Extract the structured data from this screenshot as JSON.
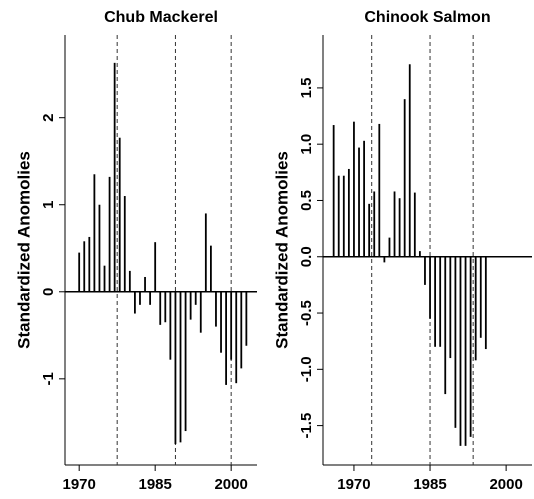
{
  "chart_data": [
    {
      "type": "bar",
      "title": "Chub Mackerel",
      "y_label": "Standardized Anomolies",
      "color": "#000000",
      "x": [
        1970,
        1971,
        1972,
        1973,
        1974,
        1975,
        1976,
        1977,
        1978,
        1979,
        1980,
        1981,
        1982,
        1983,
        1984,
        1985,
        1986,
        1987,
        1988,
        1989,
        1990,
        1991,
        1992,
        1993,
        1994,
        1995,
        1996,
        1997,
        1998,
        1999,
        2000,
        2001,
        2002,
        2003
      ],
      "values": [
        0.45,
        0.58,
        0.63,
        1.35,
        1.0,
        0.3,
        1.32,
        2.63,
        1.77,
        1.1,
        0.24,
        -0.25,
        -0.15,
        0.17,
        -0.15,
        0.57,
        -0.38,
        -0.35,
        -0.78,
        -1.75,
        -1.73,
        -1.6,
        -0.32,
        -0.15,
        -0.47,
        0.9,
        0.53,
        -0.4,
        -0.7,
        -1.07,
        -0.78,
        -1.05,
        -0.88,
        -0.62
      ],
      "vlines": [
        1977.5,
        1989,
        2000
      ],
      "xlim": [
        1967.2,
        2005.1
      ],
      "xticks": [
        1970,
        1985,
        2000
      ],
      "ylim": [
        -1.99,
        2.95
      ],
      "yticks": [
        -1,
        0,
        1,
        2
      ]
    },
    {
      "type": "bar",
      "title": "Chinook Salmon",
      "y_label": "Standardized Anomolies",
      "color": "#000000",
      "x": [
        1966,
        1967,
        1968,
        1969,
        1970,
        1971,
        1972,
        1973,
        1974,
        1975,
        1976,
        1977,
        1978,
        1979,
        1980,
        1981,
        1982,
        1983,
        1984,
        1985,
        1986,
        1987,
        1988,
        1989,
        1990,
        1991,
        1992,
        1993,
        1994,
        1995,
        1996
      ],
      "values": [
        1.17,
        0.72,
        0.72,
        0.78,
        1.2,
        0.97,
        1.03,
        0.47,
        0.58,
        1.18,
        -0.05,
        0.17,
        0.58,
        0.52,
        1.4,
        1.71,
        0.57,
        0.05,
        -0.25,
        -0.55,
        -0.8,
        -0.8,
        -1.22,
        -0.9,
        -1.52,
        -1.68,
        -1.68,
        -1.6,
        -0.92,
        -0.72,
        -0.82
      ],
      "vlines": [
        1973.5,
        1985,
        1993.5
      ],
      "xlim": [
        1963.9,
        2005.1
      ],
      "xticks": [
        1970,
        1985,
        2000
      ],
      "ylim": [
        -1.85,
        1.97
      ],
      "yticks": [
        {
          "value": -1.5,
          "label": "-1.5"
        },
        {
          "value": -1,
          "label": "-1.0"
        },
        {
          "value": -0.5,
          "label": "-0.5"
        },
        {
          "value": 0,
          "label": "0.0"
        },
        {
          "value": 0.5,
          "label": "0.5"
        },
        {
          "value": 1,
          "label": "1.0"
        },
        {
          "value": 1.5,
          "label": "1.5"
        }
      ]
    }
  ]
}
